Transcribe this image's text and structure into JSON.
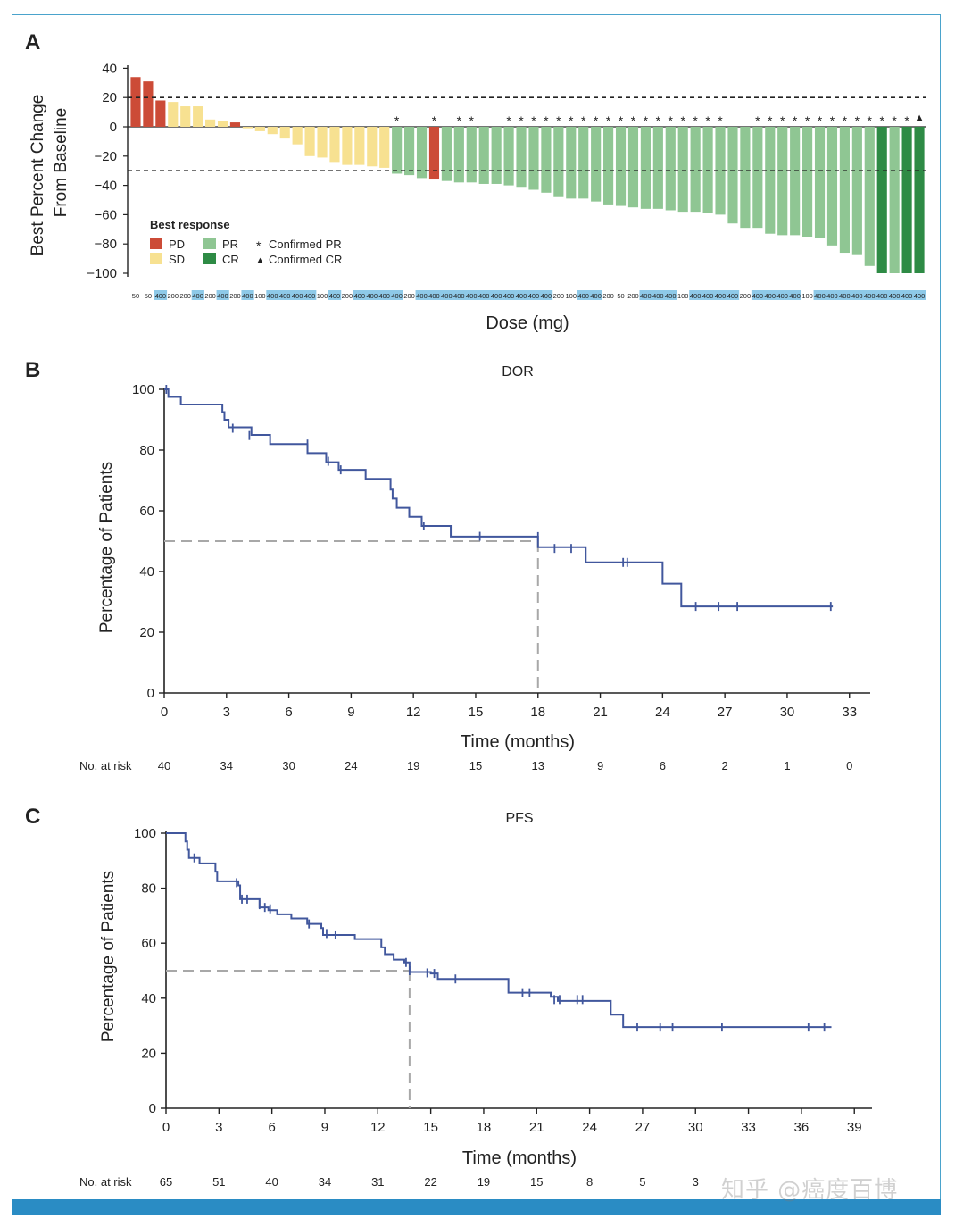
{
  "colors": {
    "PD": "#cc4b37",
    "SD": "#f7e191",
    "PR": "#8fc693",
    "CR": "#2e8b45",
    "km_line": "#41579d",
    "dose_highlight": "#8ec9e8",
    "frame": "#4aa3cc",
    "bottom_bar": "#2a8cc4"
  },
  "panel_labels": {
    "a": "A",
    "b": "B",
    "c": "C"
  },
  "watermark": "知乎 @癌度百博",
  "chart_data": [
    {
      "type": "bar",
      "id": "waterfall",
      "title": "",
      "ylabel_line1": "Best Percent Change",
      "ylabel_line2": "From Baseline",
      "xlabel": "Dose (mg)",
      "ylim": [
        -105,
        42
      ],
      "yticks": [
        40,
        20,
        0,
        -20,
        -40,
        -60,
        -80,
        -100
      ],
      "ytick_labels": [
        "40",
        "20",
        "0",
        "−20",
        "−40",
        "−60",
        "−80",
        "−100"
      ],
      "reference_lines": [
        20,
        -30
      ],
      "legend": {
        "title": "Best response",
        "items": [
          {
            "key": "PD",
            "label": "PD"
          },
          {
            "key": "SD",
            "label": "SD"
          },
          {
            "key": "PR",
            "label": "PR"
          },
          {
            "key": "CR",
            "label": "CR"
          }
        ],
        "markers": [
          {
            "symbol": "*",
            "label": "Confirmed PR"
          },
          {
            "symbol": "▲",
            "label": "Confirmed CR"
          }
        ]
      },
      "values": [
        34,
        31,
        18,
        17,
        14,
        14,
        5,
        4,
        3,
        -1,
        -3,
        -5,
        -8,
        -12,
        -20,
        -21,
        -24,
        -26,
        -26,
        -27,
        -28,
        -32,
        -33,
        -35,
        -36,
        -37,
        -38,
        -38,
        -39,
        -39,
        -40,
        -41,
        -43,
        -45,
        -48,
        -49,
        -49,
        -51,
        -53,
        -54,
        -55,
        -56,
        -56,
        -57,
        -58,
        -58,
        -59,
        -60,
        -66,
        -69,
        -69,
        -73,
        -74,
        -74,
        -75,
        -76,
        -81,
        -86,
        -87,
        -95,
        -100,
        -100,
        -100,
        -100
      ],
      "categories": [
        "PD",
        "PD",
        "PD",
        "SD",
        "SD",
        "SD",
        "SD",
        "SD",
        "PD",
        "SD",
        "SD",
        "SD",
        "SD",
        "SD",
        "SD",
        "SD",
        "SD",
        "SD",
        "SD",
        "SD",
        "SD",
        "PR",
        "PR",
        "PR",
        "PD",
        "PR",
        "PR",
        "PR",
        "PR",
        "PR",
        "PR",
        "PR",
        "PR",
        "PR",
        "PR",
        "PR",
        "PR",
        "PR",
        "PR",
        "PR",
        "PR",
        "PR",
        "PR",
        "PR",
        "PR",
        "PR",
        "PR",
        "PR",
        "PR",
        "PR",
        "PR",
        "PR",
        "PR",
        "PR",
        "PR",
        "PR",
        "PR",
        "PR",
        "PR",
        "PR",
        "CR",
        "PR",
        "CR",
        "CR"
      ],
      "doses": [
        "50",
        "50",
        "400",
        "200",
        "200",
        "400",
        "200",
        "400",
        "200",
        "400",
        "100",
        "400",
        "400",
        "400",
        "400",
        "100",
        "400",
        "200",
        "400",
        "400",
        "400",
        "400",
        "200",
        "400",
        "400",
        "400",
        "400",
        "400",
        "400",
        "400",
        "400",
        "400",
        "400",
        "400",
        "200",
        "100",
        "400",
        "400",
        "200",
        "50",
        "200",
        "400",
        "400",
        "400",
        "100",
        "400",
        "400",
        "400",
        "400",
        "200",
        "400",
        "400",
        "400",
        "400",
        "100",
        "400",
        "400",
        "400",
        "400",
        "400",
        "400",
        "400",
        "400",
        "400"
      ],
      "confirmed": [
        "",
        "",
        "",
        "",
        "",
        "",
        "",
        "",
        "",
        "",
        "",
        "",
        "",
        "",
        "",
        "",
        "",
        "",
        "",
        "",
        "",
        "*",
        "",
        "",
        "*",
        "",
        "*",
        "*",
        "",
        "",
        "*",
        "*",
        "*",
        "*",
        "*",
        "*",
        "*",
        "*",
        "*",
        "*",
        "*",
        "*",
        "*",
        "*",
        "*",
        "*",
        "*",
        "*",
        "",
        "",
        "*",
        "*",
        "*",
        "*",
        "*",
        "*",
        "*",
        "*",
        "*",
        "*",
        "*",
        "*",
        "*",
        "▲"
      ]
    },
    {
      "type": "line",
      "id": "dor",
      "title": "DOR",
      "xlabel": "Time (months)",
      "ylabel": "Percentage of Patients",
      "xlim": [
        0,
        34
      ],
      "ylim": [
        0,
        100
      ],
      "xticks": [
        0,
        3,
        6,
        9,
        12,
        15,
        18,
        21,
        24,
        27,
        30,
        33
      ],
      "yticks": [
        0,
        20,
        40,
        60,
        80,
        100
      ],
      "median": 18,
      "steps": [
        [
          0,
          100
        ],
        [
          0.2,
          97.5
        ],
        [
          0.8,
          95
        ],
        [
          2.8,
          92.5
        ],
        [
          2.9,
          90
        ],
        [
          3.1,
          87.5
        ],
        [
          4.2,
          85
        ],
        [
          5.1,
          82
        ],
        [
          6.5,
          82
        ],
        [
          6.9,
          79
        ],
        [
          7.8,
          76
        ],
        [
          8.4,
          73.5
        ],
        [
          9.7,
          70.5
        ],
        [
          10.9,
          67
        ],
        [
          11.0,
          64
        ],
        [
          11.2,
          61
        ],
        [
          11.8,
          58
        ],
        [
          12.4,
          55
        ],
        [
          13.8,
          51.5
        ],
        [
          18.0,
          48
        ],
        [
          20.3,
          43
        ],
        [
          24.0,
          36
        ],
        [
          24.9,
          28.5
        ],
        [
          32.2,
          28.5
        ]
      ],
      "censors": [
        [
          0.1,
          100
        ],
        [
          3.3,
          87.2
        ],
        [
          4.1,
          84.8
        ],
        [
          6.9,
          82
        ],
        [
          7.9,
          76.3
        ],
        [
          8.5,
          73.5
        ],
        [
          12.5,
          55
        ],
        [
          15.2,
          51.6
        ],
        [
          18.0,
          51.5
        ],
        [
          18.8,
          47.6
        ],
        [
          19.6,
          47.6
        ],
        [
          22.1,
          43
        ],
        [
          22.3,
          43
        ],
        [
          25.6,
          28.5
        ],
        [
          26.7,
          28.5
        ],
        [
          27.6,
          28.5
        ],
        [
          32.1,
          28.5
        ]
      ],
      "at_risk_label": "No. at risk",
      "at_risk": [
        "40",
        "34",
        "30",
        "24",
        "19",
        "15",
        "13",
        "9",
        "6",
        "2",
        "1",
        "0"
      ]
    },
    {
      "type": "line",
      "id": "pfs",
      "title": "PFS",
      "xlabel": "Time (months)",
      "ylabel": "Percentage of Patients",
      "xlim": [
        0,
        40
      ],
      "ylim": [
        0,
        100
      ],
      "xticks": [
        0,
        3,
        6,
        9,
        12,
        15,
        18,
        21,
        24,
        27,
        30,
        33,
        36,
        39
      ],
      "yticks": [
        0,
        20,
        40,
        60,
        80,
        100
      ],
      "median": 13.8,
      "steps": [
        [
          0,
          100
        ],
        [
          1.1,
          97
        ],
        [
          1.2,
          94
        ],
        [
          1.3,
          91
        ],
        [
          1.9,
          89
        ],
        [
          2.8,
          86
        ],
        [
          2.9,
          82.5
        ],
        [
          4.1,
          81
        ],
        [
          4.2,
          76
        ],
        [
          5.3,
          73
        ],
        [
          5.8,
          72
        ],
        [
          6.3,
          70.5
        ],
        [
          7.1,
          69
        ],
        [
          8.0,
          67
        ],
        [
          8.8,
          65.5
        ],
        [
          8.9,
          63
        ],
        [
          10.7,
          61.5
        ],
        [
          12.2,
          58.5
        ],
        [
          12.4,
          56
        ],
        [
          12.9,
          54
        ],
        [
          13.5,
          53
        ],
        [
          13.8,
          49.5
        ],
        [
          15.0,
          49
        ],
        [
          15.4,
          47
        ],
        [
          19.4,
          42
        ],
        [
          21.8,
          40.5
        ],
        [
          22.2,
          39
        ],
        [
          25.2,
          34
        ],
        [
          25.9,
          29.5
        ],
        [
          37.7,
          29.5
        ]
      ],
      "censors": [
        [
          1.6,
          91
        ],
        [
          4.0,
          82
        ],
        [
          4.3,
          76
        ],
        [
          4.6,
          76
        ],
        [
          5.3,
          74
        ],
        [
          5.6,
          73
        ],
        [
          5.9,
          72.5
        ],
        [
          8.1,
          67
        ],
        [
          9.1,
          63.5
        ],
        [
          9.6,
          63
        ],
        [
          13.6,
          53
        ],
        [
          13.8,
          50
        ],
        [
          14.8,
          49.2
        ],
        [
          15.2,
          49
        ],
        [
          16.4,
          47
        ],
        [
          20.2,
          42
        ],
        [
          20.6,
          42
        ],
        [
          22.0,
          39.5
        ],
        [
          22.3,
          39.5
        ],
        [
          23.3,
          39.5
        ],
        [
          23.6,
          39.5
        ],
        [
          26.7,
          29.5
        ],
        [
          28.0,
          29.5
        ],
        [
          28.7,
          29.5
        ],
        [
          31.5,
          29.5
        ],
        [
          36.4,
          29.5
        ],
        [
          37.3,
          29.5
        ]
      ],
      "at_risk_label": "No. at risk",
      "at_risk": [
        "65",
        "51",
        "40",
        "34",
        "31",
        "22",
        "19",
        "15",
        "8",
        "5",
        "3",
        "",
        "",
        ""
      ]
    }
  ]
}
